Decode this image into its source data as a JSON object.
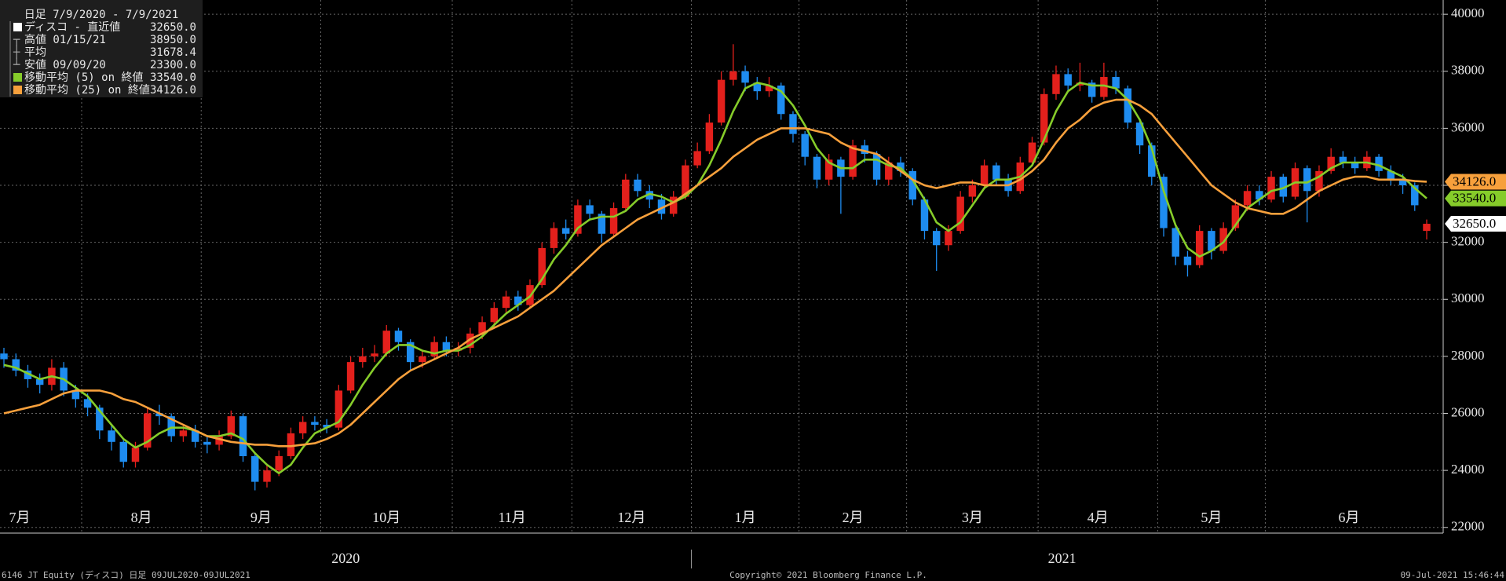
{
  "chart_data": {
    "type": "candlestick",
    "title": "日足 7/9/2020 - 7/9/2021",
    "categories": [
      "7月",
      null,
      null,
      null,
      null,
      null,
      null,
      "8月",
      null,
      null,
      null,
      null,
      null,
      null,
      null,
      null,
      null,
      "9月",
      null,
      null,
      null,
      null,
      null,
      null,
      null,
      null,
      null,
      "10月",
      null,
      null,
      null,
      null,
      null,
      null,
      null,
      null,
      null,
      null,
      "11月",
      null,
      null,
      null,
      null,
      null,
      null,
      null,
      null,
      null,
      "12月",
      null,
      null,
      null,
      null,
      null,
      null,
      null,
      null,
      null,
      "1月",
      null,
      null,
      null,
      null,
      null,
      null,
      null,
      null,
      "2月",
      null,
      null,
      null,
      null,
      null,
      null,
      null,
      null,
      "3月",
      null,
      null,
      null,
      null,
      null,
      null,
      null,
      null,
      null,
      null,
      "4月",
      null,
      null,
      null,
      null,
      null,
      null,
      null,
      null,
      null,
      "5月",
      null,
      null,
      null,
      null,
      null,
      null,
      null,
      null,
      "6月",
      null,
      null,
      null,
      null,
      null,
      null,
      null,
      null,
      null,
      null,
      null,
      null,
      null
    ],
    "year_categories": [
      "2020",
      null,
      null,
      null,
      null,
      null,
      null,
      null,
      null,
      null,
      null,
      null,
      null,
      null,
      null,
      null,
      null,
      null,
      null,
      null,
      null,
      null,
      null,
      null,
      null,
      null,
      null,
      null,
      null,
      null,
      null,
      null,
      null,
      null,
      null,
      null,
      null,
      null,
      null,
      null,
      null,
      null,
      null,
      null,
      null,
      null,
      null,
      null,
      null,
      null,
      null,
      null,
      null,
      null,
      null,
      null,
      null,
      null,
      "2021",
      null,
      null,
      null,
      null,
      null,
      null,
      null,
      null,
      null,
      null,
      null,
      null,
      null,
      null,
      null,
      null,
      null,
      null,
      null,
      null,
      null,
      null,
      null,
      null,
      null,
      null,
      null,
      null,
      null,
      null,
      null,
      null,
      null,
      null,
      null,
      null,
      null,
      null,
      null,
      null,
      null,
      null,
      null,
      null,
      null,
      null,
      null,
      null,
      null,
      null,
      null,
      null,
      null,
      null,
      null,
      null,
      null,
      null,
      null
    ],
    "ylim": [
      21800,
      40500
    ],
    "yticks": [
      22000,
      24000,
      26000,
      28000,
      30000,
      32000,
      34000,
      36000,
      38000,
      40000
    ],
    "grid": true,
    "series": [
      {
        "name": "ディスコ - 直近値",
        "color": "#ffffff",
        "up_color": "#e3201c",
        "down_color": "#1e8cf0",
        "value": 32650,
        "value_label": "32650.0",
        "open": [
          28100,
          27900,
          27500,
          27200,
          27000,
          27600,
          26800,
          26500,
          26200,
          25400,
          25000,
          24300,
          24800,
          26000,
          25900,
          25200,
          25400,
          25000,
          24900,
          25200,
          25900,
          24500,
          23600,
          24000,
          24500,
          25300,
          25700,
          25600,
          25500,
          26800,
          27800,
          28000,
          28100,
          28900,
          28500,
          27800,
          28000,
          28500,
          28200,
          28300,
          28800,
          29200,
          29700,
          30100,
          29800,
          30500,
          31800,
          32500,
          32300,
          33300,
          33000,
          32300,
          33200,
          34200,
          33800,
          33500,
          33000,
          33600,
          34700,
          35200,
          36200,
          37700,
          38000,
          37600,
          37300,
          37500,
          36500,
          35800,
          35000,
          34200,
          34900,
          34300,
          35400,
          35100,
          34200,
          34800,
          34500,
          33500,
          32400,
          31900,
          32400,
          33600,
          34000,
          34700,
          34200,
          33800,
          34800,
          35500,
          37200,
          37900,
          37500,
          37600,
          37100,
          37800,
          37400,
          36200,
          35400,
          34300,
          32500,
          31500,
          31200,
          32400,
          31700,
          32500,
          33300,
          33800,
          33500,
          34300,
          33600,
          34600,
          33800,
          34500,
          35000,
          34800,
          34600,
          35000,
          34500,
          34200,
          34000,
          32400
        ],
        "high": [
          28300,
          28100,
          27700,
          27400,
          27900,
          27800,
          27000,
          26700,
          26300,
          25600,
          25100,
          25000,
          26200,
          26300,
          26000,
          25600,
          25600,
          25200,
          25400,
          26100,
          26000,
          24600,
          24200,
          24700,
          25500,
          25900,
          25900,
          25800,
          27000,
          28000,
          28300,
          28400,
          29100,
          29000,
          28600,
          28200,
          28700,
          28700,
          28500,
          29000,
          29400,
          29900,
          30300,
          30300,
          30700,
          32000,
          32700,
          32800,
          33500,
          33500,
          33100,
          33400,
          34400,
          34400,
          34000,
          33700,
          33800,
          34900,
          35500,
          36500,
          38000,
          38950,
          38200,
          37800,
          37800,
          37600,
          36600,
          35900,
          35100,
          35100,
          35000,
          35600,
          35600,
          35200,
          35000,
          35000,
          34600,
          33600,
          32500,
          32600,
          33800,
          34200,
          34900,
          34800,
          34400,
          35000,
          35700,
          37400,
          38200,
          38100,
          38300,
          37700,
          38300,
          38000,
          37500,
          36300,
          35500,
          34400,
          32600,
          31700,
          32600,
          32500,
          32700,
          33500,
          34000,
          34000,
          34500,
          34400,
          34800,
          34700,
          34700,
          35300,
          35200,
          35000,
          35200,
          35100,
          34700,
          34400,
          34100,
          32800
        ],
        "low": [
          27600,
          27300,
          26900,
          26700,
          26800,
          26600,
          26200,
          25900,
          25100,
          24700,
          24100,
          24100,
          24700,
          25600,
          25000,
          25000,
          24800,
          24600,
          24700,
          25100,
          24300,
          23300,
          23400,
          23800,
          24400,
          25100,
          25400,
          25300,
          25400,
          26700,
          27600,
          27800,
          28000,
          28200,
          27500,
          27600,
          27900,
          28000,
          28000,
          28100,
          28600,
          29000,
          29500,
          29600,
          29700,
          30400,
          31600,
          32100,
          32200,
          32800,
          32000,
          32200,
          33100,
          33600,
          33200,
          32800,
          32900,
          33500,
          34600,
          35100,
          36100,
          37500,
          37300,
          37000,
          37100,
          36300,
          35500,
          34700,
          33900,
          34000,
          33000,
          34200,
          34800,
          34000,
          34000,
          34300,
          33300,
          32100,
          31000,
          31700,
          32300,
          33400,
          33900,
          34000,
          33600,
          33700,
          34700,
          35400,
          37000,
          37300,
          37300,
          36900,
          37000,
          37200,
          36000,
          35100,
          34000,
          32200,
          31200,
          30800,
          31100,
          31400,
          31600,
          32400,
          33100,
          33300,
          33400,
          33400,
          33500,
          32700,
          33600,
          34400,
          34600,
          34400,
          34500,
          34300,
          34000,
          33700,
          33100,
          32100
        ],
        "close": [
          27900,
          27500,
          27200,
          27000,
          27600,
          26800,
          26500,
          26200,
          25400,
          25000,
          24300,
          24800,
          26000,
          25900,
          25200,
          25400,
          25000,
          24900,
          25200,
          25900,
          24500,
          23600,
          24000,
          24500,
          25300,
          25700,
          25600,
          25500,
          26800,
          27800,
          28000,
          28100,
          28900,
          28500,
          27800,
          28000,
          28500,
          28200,
          28300,
          28800,
          29200,
          29700,
          30100,
          29800,
          30500,
          31800,
          32500,
          32300,
          33300,
          33000,
          32300,
          33200,
          34200,
          33800,
          33500,
          33000,
          33600,
          34700,
          35200,
          36200,
          37700,
          38000,
          37600,
          37300,
          37500,
          36500,
          35800,
          35000,
          34200,
          34900,
          34300,
          35400,
          35100,
          34200,
          34800,
          34500,
          33500,
          32400,
          31900,
          32400,
          33600,
          34000,
          34700,
          34200,
          33800,
          34800,
          35500,
          37200,
          37900,
          37500,
          37600,
          37100,
          37800,
          37400,
          36200,
          35400,
          34300,
          32500,
          31500,
          31200,
          32400,
          31700,
          32500,
          33300,
          33800,
          33500,
          34300,
          33600,
          34600,
          33800,
          34500,
          35000,
          34800,
          34600,
          35000,
          34500,
          34200,
          34000,
          33300,
          32650
        ]
      },
      {
        "name": "移動平均 (5) on 終値",
        "color": "#86cc2a",
        "value": 33540,
        "value_label": "33540.0",
        "values": [
          27700,
          27600,
          27400,
          27200,
          27300,
          27200,
          26900,
          26600,
          26100,
          25600,
          25100,
          24800,
          25000,
          25300,
          25500,
          25500,
          25400,
          25200,
          25200,
          25300,
          25100,
          24600,
          24200,
          23900,
          24200,
          24800,
          25300,
          25500,
          25700,
          26300,
          27000,
          27600,
          28100,
          28400,
          28400,
          28200,
          28100,
          28200,
          28200,
          28400,
          28700,
          29100,
          29500,
          29800,
          30100,
          30700,
          31400,
          31900,
          32500,
          32800,
          32900,
          32900,
          33100,
          33500,
          33700,
          33600,
          33400,
          33600,
          34000,
          34700,
          35600,
          36600,
          37400,
          37600,
          37500,
          37300,
          36800,
          36100,
          35300,
          34800,
          34600,
          34600,
          34900,
          34900,
          34700,
          34600,
          34200,
          33500,
          32700,
          32400,
          32700,
          33300,
          33900,
          34200,
          34200,
          34300,
          34700,
          35600,
          36600,
          37300,
          37600,
          37500,
          37500,
          37400,
          37000,
          36300,
          35300,
          33800,
          32600,
          31800,
          31500,
          31700,
          32000,
          32600,
          33200,
          33500,
          33800,
          33900,
          34100,
          34100,
          34300,
          34600,
          34800,
          34800,
          34800,
          34700,
          34500,
          34300,
          33900,
          33540
        ]
      },
      {
        "name": "移動平均 (25) on 終値",
        "color": "#f7a03c",
        "value": 34126,
        "value_label": "34126.0",
        "values": [
          26000,
          26100,
          26200,
          26300,
          26500,
          26700,
          26800,
          26800,
          26800,
          26700,
          26500,
          26400,
          26200,
          26000,
          25800,
          25600,
          25400,
          25200,
          25100,
          25000,
          24950,
          24900,
          24900,
          24850,
          24850,
          24900,
          24950,
          25100,
          25300,
          25600,
          26000,
          26400,
          26800,
          27200,
          27500,
          27700,
          27900,
          28100,
          28300,
          28600,
          28800,
          29000,
          29200,
          29400,
          29700,
          30000,
          30300,
          30700,
          31100,
          31500,
          31900,
          32200,
          32500,
          32800,
          33000,
          33200,
          33400,
          33700,
          34000,
          34300,
          34600,
          35000,
          35300,
          35600,
          35800,
          36000,
          36000,
          36000,
          35900,
          35800,
          35500,
          35300,
          35200,
          35100,
          34800,
          34500,
          34200,
          34000,
          33900,
          34000,
          34100,
          34100,
          34000,
          34000,
          34000,
          34200,
          34500,
          34900,
          35500,
          36000,
          36300,
          36700,
          36900,
          37000,
          37000,
          36800,
          36500,
          36000,
          35500,
          35000,
          34500,
          34000,
          33700,
          33400,
          33200,
          33100,
          33000,
          33000,
          33200,
          33500,
          33800,
          34000,
          34200,
          34300,
          34300,
          34200,
          34200,
          34200,
          34150,
          34126
        ]
      }
    ],
    "stats": [
      {
        "name": "高値 01/15/21",
        "value": 38950,
        "value_label": "38950.0"
      },
      {
        "name": "平均",
        "value": 31678.4
      },
      {
        "name": "安値 09/09/20",
        "value": 23300,
        "value_label": "23300.0"
      }
    ]
  },
  "footer": {
    "left": "6146 JT Equity (ディスコ)  日足 09JUL2020-09JUL2021",
    "center": "Copyright© 2021 Bloomberg Finance L.P.",
    "right": "09-Jul-2021 15:46:44"
  }
}
